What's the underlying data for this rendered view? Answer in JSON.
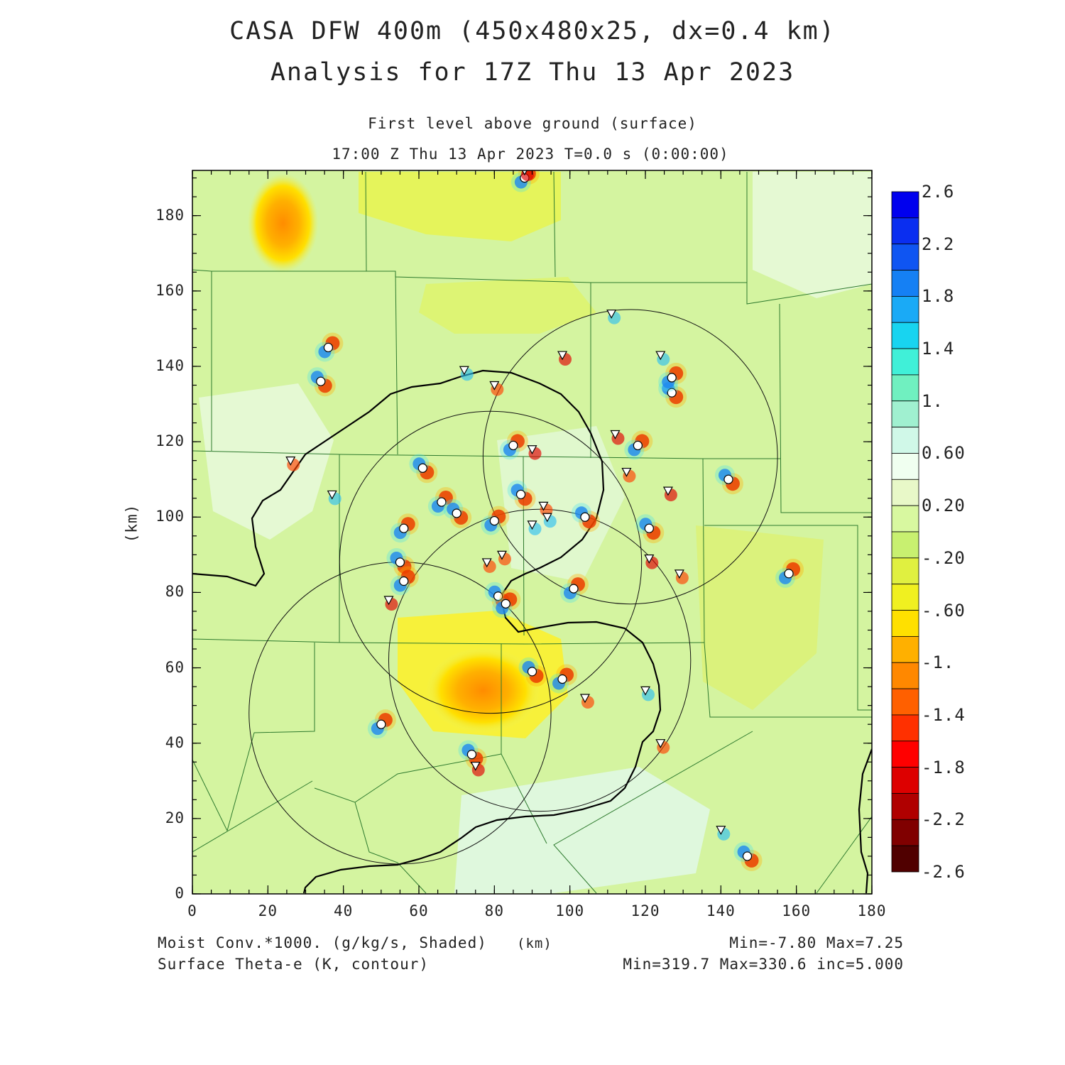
{
  "header": {
    "title": "CASA DFW 400m (450x480x25, dx=0.4 km)",
    "subtitle": "Analysis for 17Z Thu 13 Apr 2023",
    "level": "First level above ground (surface)",
    "time": "17:00 Z Thu 13 Apr 2023   T=0.0 s (0:00:00)"
  },
  "axes": {
    "xlabel": "(km)",
    "ylabel": "(km)",
    "xticks": [
      "0",
      "20",
      "40",
      "60",
      "80",
      "100",
      "120",
      "140",
      "160",
      "180"
    ],
    "yticks": [
      "0",
      "20",
      "40",
      "60",
      "80",
      "100",
      "120",
      "140",
      "160",
      "180"
    ],
    "xrange": [
      0,
      180
    ],
    "yrange": [
      0,
      192
    ]
  },
  "colorbar": {
    "labels": [
      "2.6",
      "2.2",
      "1.8",
      "1.4",
      "1.",
      "0.60",
      "0.20",
      "-.20",
      "-.60",
      "-1.",
      "-1.4",
      "-1.8",
      "-2.2",
      "-2.6"
    ],
    "colors": [
      "#0000ee",
      "#0a2ef0",
      "#0f55f2",
      "#1580f4",
      "#1aaaf6",
      "#18d4f0",
      "#40f0d8",
      "#70f0c0",
      "#a0f0d0",
      "#d0f8e8",
      "#f0fff0",
      "#e8f8c8",
      "#d8f8a0",
      "#c8f070",
      "#e0f040",
      "#f0f020",
      "#ffe000",
      "#ffb000",
      "#ff8800",
      "#ff6000",
      "#ff3000",
      "#ff0000",
      "#dd0000",
      "#b00000",
      "#800000",
      "#500000"
    ]
  },
  "footer": {
    "field1": "Moist Conv.*1000. (g/kg/s, Shaded)",
    "field2": "Surface Theta-e (K, contour)",
    "units": "(km)",
    "stats1": "Min=-7.80 Max=7.25",
    "stats2": "Min=319.7 Max=330.6 inc=5.000"
  },
  "radars": [
    {
      "cx": 116,
      "cy": 116,
      "r": 39
    },
    {
      "cx": 79,
      "cy": 88,
      "r": 40
    },
    {
      "cx": 92,
      "cy": 62,
      "r": 40
    },
    {
      "cx": 55,
      "cy": 48,
      "r": 40
    }
  ],
  "stations": {
    "circles": [
      [
        36,
        145
      ],
      [
        34,
        136
      ],
      [
        56,
        97
      ],
      [
        55,
        88
      ],
      [
        56,
        83
      ],
      [
        61,
        113
      ],
      [
        66,
        104
      ],
      [
        70,
        101
      ],
      [
        80,
        99
      ],
      [
        81,
        79
      ],
      [
        83,
        77
      ],
      [
        87,
        106
      ],
      [
        85,
        119
      ],
      [
        90,
        59
      ],
      [
        98,
        57
      ],
      [
        104,
        100
      ],
      [
        101,
        81
      ],
      [
        74,
        37
      ],
      [
        50,
        45
      ],
      [
        121,
        97
      ],
      [
        118,
        119
      ],
      [
        127,
        133
      ],
      [
        127,
        137
      ],
      [
        142,
        110
      ],
      [
        158,
        85
      ],
      [
        147,
        10
      ],
      [
        88,
        190
      ]
    ],
    "triangles": [
      [
        26,
        115
      ],
      [
        37,
        106
      ],
      [
        52,
        78
      ],
      [
        80,
        135
      ],
      [
        72,
        139
      ],
      [
        75,
        34
      ],
      [
        82,
        90
      ],
      [
        90,
        98
      ],
      [
        90,
        118
      ],
      [
        93,
        103
      ],
      [
        94,
        100
      ],
      [
        98,
        143
      ],
      [
        104,
        52
      ],
      [
        111,
        154
      ],
      [
        112,
        122
      ],
      [
        115,
        112
      ],
      [
        120,
        54
      ],
      [
        121,
        89
      ],
      [
        124,
        40
      ],
      [
        124,
        143
      ],
      [
        126,
        107
      ],
      [
        129,
        85
      ],
      [
        140,
        17
      ],
      [
        88,
        192
      ],
      [
        78,
        88
      ]
    ]
  },
  "hotspots": [
    {
      "x": 77,
      "y": 54,
      "r": 13,
      "level": -1.2
    },
    {
      "x": 24,
      "y": 178,
      "r": 7,
      "level": -1.2
    }
  ]
}
